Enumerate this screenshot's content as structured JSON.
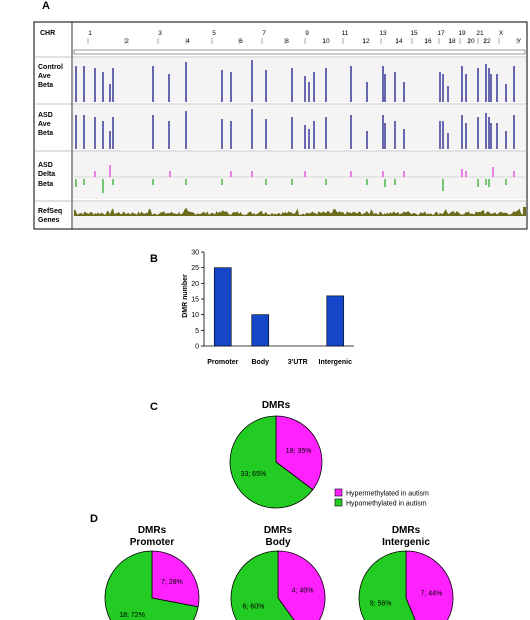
{
  "panels": {
    "a": "A",
    "b": "B",
    "c": "C",
    "d": "D"
  },
  "genome_browser": {
    "chr_header": "CHR",
    "chromosomes": [
      "1",
      "2",
      "3",
      "4",
      "5",
      "6",
      "7",
      "8",
      "9",
      "10",
      "11",
      "12",
      "13",
      "14",
      "15",
      "16",
      "17",
      "18",
      "19",
      "20",
      "21",
      "22",
      "X",
      "Y"
    ],
    "tracks": [
      {
        "lines": [
          "Control",
          "Ave",
          "Beta"
        ],
        "color": "#1c1c8c"
      },
      {
        "lines": [
          "ASD",
          "Ave",
          "Beta"
        ],
        "color": "#1c1c8c"
      },
      {
        "lines": [
          "ASD",
          "Delta",
          "Beta"
        ],
        "color_up": "#e040e0",
        "color_down": "#30b030"
      },
      {
        "lines": [
          "RefSeq",
          "Genes"
        ],
        "color": "#6b6b1a"
      }
    ]
  },
  "colors": {
    "bar": "#1646c8",
    "hyper": "#ff22ff",
    "hypo": "#22cc22"
  },
  "chart_data": [
    {
      "type": "bar",
      "categories": [
        "Promoter",
        "Body",
        "3'UTR",
        "Intergenic"
      ],
      "values": [
        25,
        10,
        0,
        16
      ],
      "ylabel": "DMR number",
      "ylim": [
        0,
        30
      ],
      "yticks": [
        "0",
        "5",
        "10",
        "15",
        "20",
        "25",
        "30"
      ]
    },
    {
      "type": "pie",
      "title": "DMRs",
      "slices": [
        {
          "name": "Hypermethylated in autism",
          "value": 18,
          "label": "18; 35%"
        },
        {
          "name": "Hypomethylated in autism",
          "value": 33,
          "label": "33; 65%"
        }
      ]
    },
    {
      "type": "pie",
      "title": [
        "DMRs",
        "Promoter"
      ],
      "slices": [
        {
          "name": "Hypermethylated in autism",
          "value": 7,
          "label": "7; 28%"
        },
        {
          "name": "Hypomethylated in autism",
          "value": 18,
          "label": "18; 72%"
        }
      ]
    },
    {
      "type": "pie",
      "title": [
        "DMRs",
        "Body"
      ],
      "slices": [
        {
          "name": "Hypermethylated in autism",
          "value": 4,
          "label": "4; 40%"
        },
        {
          "name": "Hypomethylated in autism",
          "value": 6,
          "label": "6; 60%"
        }
      ]
    },
    {
      "type": "pie",
      "title": [
        "DMRs",
        "Intergenic"
      ],
      "slices": [
        {
          "name": "Hypermethylated in autism",
          "value": 7,
          "label": "7; 44%"
        },
        {
          "name": "Hypomethylated in autism",
          "value": 9,
          "label": "9; 56%"
        }
      ]
    }
  ],
  "legend": [
    "Hypermethylated in autism",
    "Hypomethylated in autism"
  ]
}
